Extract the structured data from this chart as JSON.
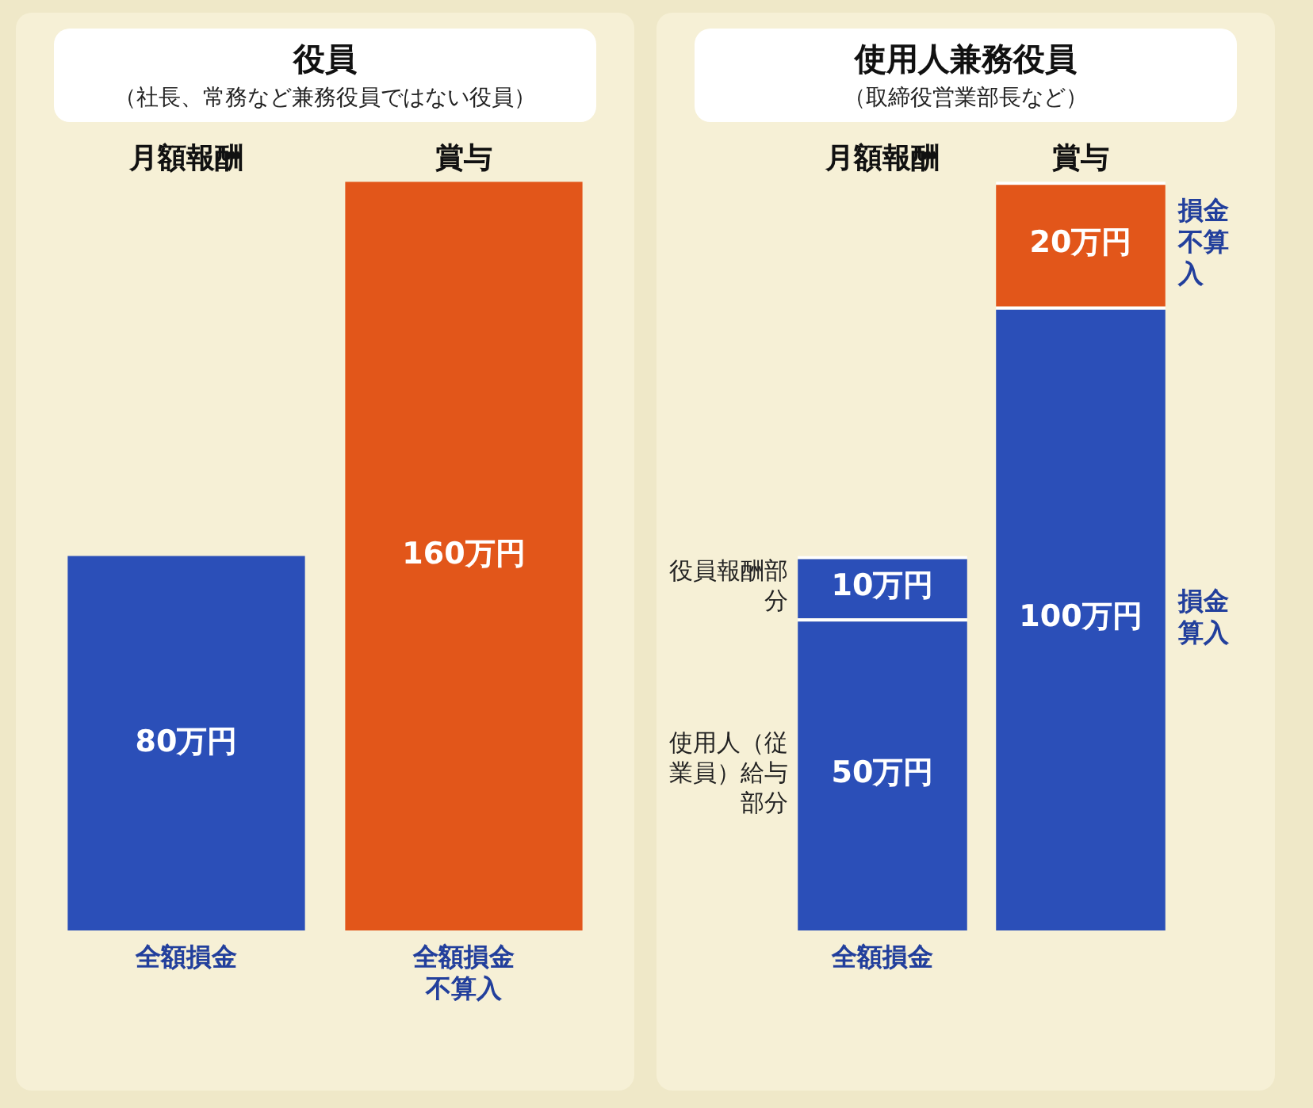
{
  "chart_data": [
    {
      "type": "bar",
      "title": "役員",
      "subtitle": "（社長、常務など兼務役員ではない役員）",
      "categories": [
        "月額報酬",
        "賞与"
      ],
      "colors": [
        "#2b4fb8",
        "#e2561a"
      ],
      "values": [
        80,
        160
      ],
      "value_labels": [
        "80万円",
        "160万円"
      ],
      "grid": false,
      "legend": false,
      "annotations": [
        "全額損金",
        "全額損金不算入"
      ]
    },
    {
      "type": "bar",
      "title": "使用人兼務役員",
      "subtitle": "（取締役営業部長など）",
      "categories": [
        "月額報酬",
        "賞与"
      ],
      "stacked": true,
      "grid": false,
      "legend": false,
      "series": [
        {
          "name": "使用人（従業員）給与部分",
          "colors": [
            "#2b4fb8",
            "#2b4fb8"
          ],
          "values": [
            50,
            100
          ],
          "value_labels": [
            "50万円",
            "100万円"
          ]
        },
        {
          "name": "役員報酬部分",
          "colors": [
            "#2b4fb8",
            "#e2561a"
          ],
          "values": [
            10,
            20
          ],
          "value_labels": [
            "10万円",
            "20万円"
          ]
        }
      ],
      "annotations": [
        "全額損金",
        "損金不算入",
        "損金算入"
      ]
    }
  ]
}
